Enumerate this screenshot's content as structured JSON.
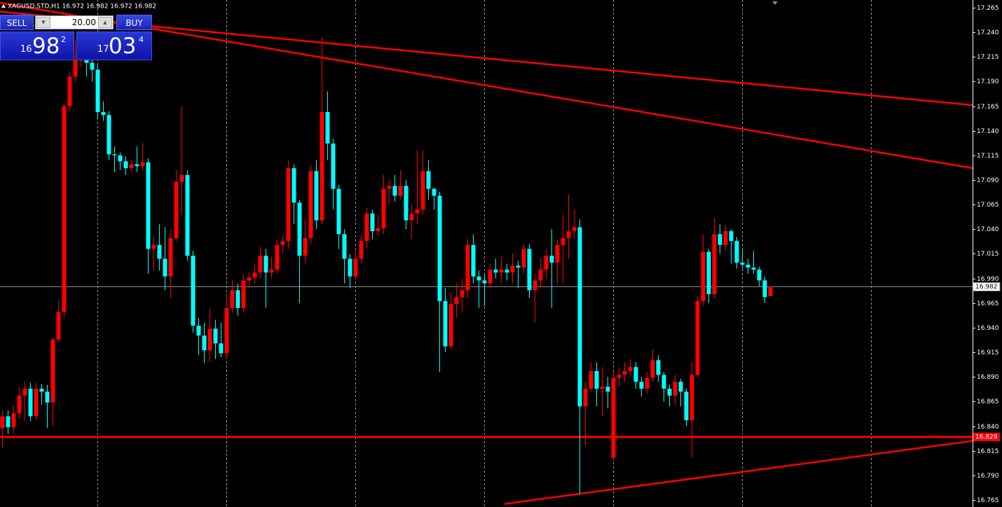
{
  "chart_data": {
    "type": "candlestick",
    "title": "XAGUSD.STD,H1  16.972 16.982 16.972 16.982",
    "up_color": "#ff0000",
    "down_color": "#00ffff",
    "open": [
      16.838,
      16.85,
      16.839,
      16.853,
      16.871,
      16.878,
      16.85,
      16.878,
      16.875,
      16.864,
      16.928,
      16.956,
      17.165,
      17.195,
      17.212,
      17.216,
      17.209,
      17.202,
      17.159,
      17.156,
      17.116,
      17.115,
      17.109,
      17.102,
      17.106,
      17.104,
      17.108,
      17.02,
      17.024,
      17.01,
      16.992,
      17.031,
      17.088,
      17.095,
      17.013,
      16.942,
      16.932,
      16.917,
      16.939,
      16.924,
      16.914,
      16.96,
      16.978,
      16.96,
      16.988,
      16.991,
      16.996,
      17.013,
      16.996,
      16.999,
      17.024,
      17.028,
      17.102,
      17.067,
      17.013,
      17.031,
      17.099,
      17.049,
      17.159,
      17.127,
      17.081,
      17.035,
      17.01,
      16.992,
      17.01,
      17.028,
      17.056,
      17.038,
      17.041,
      17.081,
      17.084,
      17.074,
      17.084,
      17.049,
      17.056,
      17.06,
      17.099,
      17.081,
      17.074,
      16.967,
      16.921,
      16.964,
      16.971,
      16.978,
      17.024,
      16.992,
      16.988,
      16.985,
      16.999,
      16.996,
      16.999,
      16.996,
      17.003,
      17.001,
      17.02,
      16.978,
      16.988,
      16.999,
      17.013,
      17.006,
      17.024,
      17.031,
      17.038,
      17.042,
      16.86,
      16.878,
      16.896,
      16.878,
      16.88,
      16.808,
      16.889,
      16.892,
      16.896,
      16.9,
      16.885,
      16.878,
      16.889,
      16.907,
      16.892,
      16.878,
      16.871,
      16.885,
      16.875,
      16.846,
      16.892,
      16.967,
      17.017,
      16.974,
      17.035,
      17.024,
      17.038,
      17.028,
      17.006,
      17.004,
      17.001,
      16.999,
      16.988,
      16.972
    ],
    "high": [
      16.856,
      16.856,
      16.862,
      16.88,
      16.885,
      16.884,
      16.884,
      16.883,
      16.882,
      16.93,
      16.968,
      17.168,
      17.2,
      17.232,
      17.24,
      17.225,
      17.24,
      17.208,
      17.17,
      17.16,
      17.124,
      17.118,
      17.114,
      17.11,
      17.124,
      17.128,
      17.112,
      17.033,
      17.045,
      17.042,
      17.04,
      17.1,
      17.165,
      17.1,
      17.018,
      16.95,
      16.945,
      16.96,
      16.948,
      16.945,
      16.975,
      16.988,
      16.985,
      16.994,
      16.996,
      17.005,
      17.022,
      17.02,
      17.012,
      17.03,
      17.034,
      17.11,
      17.106,
      17.07,
      17.05,
      17.105,
      17.11,
      17.235,
      17.18,
      17.132,
      17.085,
      17.04,
      17.015,
      17.018,
      17.035,
      17.062,
      17.06,
      17.055,
      17.095,
      17.09,
      17.095,
      17.1,
      17.09,
      17.065,
      17.12,
      17.12,
      17.11,
      17.082,
      17.078,
      16.98,
      16.975,
      16.985,
      16.99,
      17.03,
      17.035,
      16.998,
      16.995,
      17.005,
      17.01,
      17.012,
      17.005,
      17.015,
      17.008,
      17.025,
      17.025,
      16.995,
      17.01,
      17.02,
      17.04,
      17.03,
      17.055,
      17.075,
      17.06,
      17.05,
      16.885,
      16.905,
      16.905,
      16.9,
      16.89,
      16.895,
      16.9,
      16.905,
      16.908,
      16.905,
      16.89,
      16.895,
      16.918,
      16.912,
      16.895,
      16.882,
      16.892,
      16.888,
      16.878,
      16.905,
      16.972,
      17.035,
      17.02,
      17.052,
      17.045,
      17.045,
      17.04,
      17.032,
      17.02,
      17.01,
      17.018,
      17.002,
      16.992,
      16.982
    ],
    "low": [
      16.818,
      16.832,
      16.833,
      16.848,
      16.846,
      16.845,
      16.846,
      16.862,
      16.838,
      16.84,
      16.925,
      16.95,
      17.16,
      17.19,
      17.205,
      17.195,
      17.19,
      17.152,
      17.15,
      17.11,
      17.098,
      17.1,
      17.095,
      17.098,
      17.098,
      17.1,
      16.995,
      16.998,
      16.998,
      16.978,
      16.97,
      17.028,
      17.055,
      17.008,
      16.935,
      16.912,
      16.904,
      16.905,
      16.908,
      16.91,
      16.908,
      16.955,
      16.952,
      16.955,
      16.98,
      16.985,
      16.99,
      16.96,
      16.99,
      16.995,
      17.015,
      17.02,
      17.045,
      16.965,
      17.005,
      17.025,
      17.04,
      17.045,
      17.11,
      17.06,
      17.02,
      16.985,
      16.98,
      16.988,
      17.005,
      17.02,
      17.03,
      17.033,
      17.035,
      17.065,
      17.068,
      17.07,
      17.04,
      17.03,
      17.045,
      17.055,
      17.07,
      17.06,
      16.895,
      16.915,
      16.918,
      16.95,
      16.955,
      16.97,
      16.985,
      16.96,
      16.962,
      16.98,
      16.99,
      16.985,
      16.988,
      16.985,
      16.98,
      16.995,
      16.97,
      16.945,
      16.98,
      16.99,
      16.96,
      16.985,
      16.985,
      17.01,
      17.03,
      16.771,
      16.82,
      16.875,
      16.86,
      16.85,
      16.858,
      16.805,
      16.88,
      16.885,
      16.89,
      16.878,
      16.87,
      16.873,
      16.885,
      16.885,
      16.865,
      16.86,
      16.862,
      16.86,
      16.84,
      16.808,
      16.89,
      16.962,
      16.965,
      16.97,
      17.015,
      17.018,
      17.005,
      17.0,
      17.0,
      16.995,
      16.995,
      16.982,
      16.965,
      16.972
    ],
    "close": [
      16.85,
      16.839,
      16.853,
      16.871,
      16.878,
      16.85,
      16.878,
      16.875,
      16.864,
      16.928,
      16.956,
      17.165,
      17.195,
      17.212,
      17.216,
      17.209,
      17.202,
      17.159,
      17.156,
      17.116,
      17.115,
      17.109,
      17.102,
      17.106,
      17.104,
      17.108,
      17.02,
      17.024,
      17.01,
      16.992,
      17.031,
      17.088,
      17.095,
      17.013,
      16.942,
      16.932,
      16.917,
      16.939,
      16.924,
      16.914,
      16.96,
      16.978,
      16.96,
      16.988,
      16.991,
      16.996,
      17.013,
      16.996,
      16.999,
      17.024,
      17.028,
      17.102,
      17.067,
      17.013,
      17.031,
      17.099,
      17.049,
      17.159,
      17.127,
      17.081,
      17.035,
      17.01,
      16.992,
      17.01,
      17.028,
      17.056,
      17.038,
      17.041,
      17.081,
      17.084,
      17.074,
      17.084,
      17.049,
      17.056,
      17.06,
      17.099,
      17.081,
      17.074,
      16.967,
      16.921,
      16.964,
      16.971,
      16.978,
      17.024,
      16.992,
      16.988,
      16.985,
      16.999,
      16.996,
      16.999,
      16.996,
      17.003,
      17.001,
      17.02,
      16.978,
      16.988,
      16.999,
      17.013,
      17.006,
      17.024,
      17.031,
      17.038,
      17.042,
      16.86,
      16.878,
      16.896,
      16.878,
      16.88,
      16.875,
      16.889,
      16.892,
      16.896,
      16.9,
      16.885,
      16.878,
      16.889,
      16.907,
      16.892,
      16.878,
      16.871,
      16.885,
      16.875,
      16.846,
      16.892,
      16.967,
      17.017,
      16.974,
      17.035,
      17.024,
      17.038,
      17.028,
      17.006,
      17.004,
      17.001,
      16.999,
      16.988,
      16.971,
      16.982
    ],
    "xlim": [
      -0.375,
      173.125
    ],
    "xgrid": [
      17,
      40,
      63,
      86,
      109,
      132,
      155
    ],
    "ylim": [
      16.7607,
      17.2728
    ],
    "yticks": [
      16.765,
      {
        "value": 16.79,
        "label": "16.790"
      },
      16.815,
      {
        "value": 16.84,
        "label": "16.840"
      },
      16.865,
      {
        "value": 16.89,
        "label": "16.890"
      },
      16.915,
      {
        "value": 16.94,
        "label": "16.940"
      },
      16.965,
      {
        "value": 16.99,
        "label": "16.990"
      },
      17.015,
      {
        "value": 17.04,
        "label": "17.040"
      },
      17.065,
      {
        "value": 17.09,
        "label": "17.090"
      },
      17.115,
      {
        "value": 17.14,
        "label": "17.140"
      },
      17.165,
      {
        "value": 17.19,
        "label": "17.190"
      },
      17.215,
      {
        "value": 17.24,
        "label": "17.240"
      },
      17.265
    ],
    "bid_line": {
      "value": 16.982,
      "color": "#8a8a8a"
    },
    "level_line": {
      "value": 16.829,
      "color": "#ff0000"
    },
    "trendlines": [
      {
        "x": [
          -0.375,
          173.125
        ],
        "y": [
          17.261,
          17.166
        ],
        "color": "#ff0000"
      },
      {
        "x": [
          -0.375,
          173.125
        ],
        "y": [
          17.27,
          17.102
        ],
        "color": "#ff0000"
      },
      {
        "x": [
          89.625,
          173.125
        ],
        "y": [
          16.761,
          16.825
        ],
        "color": "#ff0000"
      }
    ]
  },
  "trade_panel": {
    "sell": "SELL",
    "buy": "BUY",
    "volume": "20.00",
    "sell_quote": {
      "lead": "16",
      "main": "98",
      "tail": "2"
    },
    "buy_quote": {
      "lead": "17",
      "main": "03",
      "tail": "4"
    }
  }
}
